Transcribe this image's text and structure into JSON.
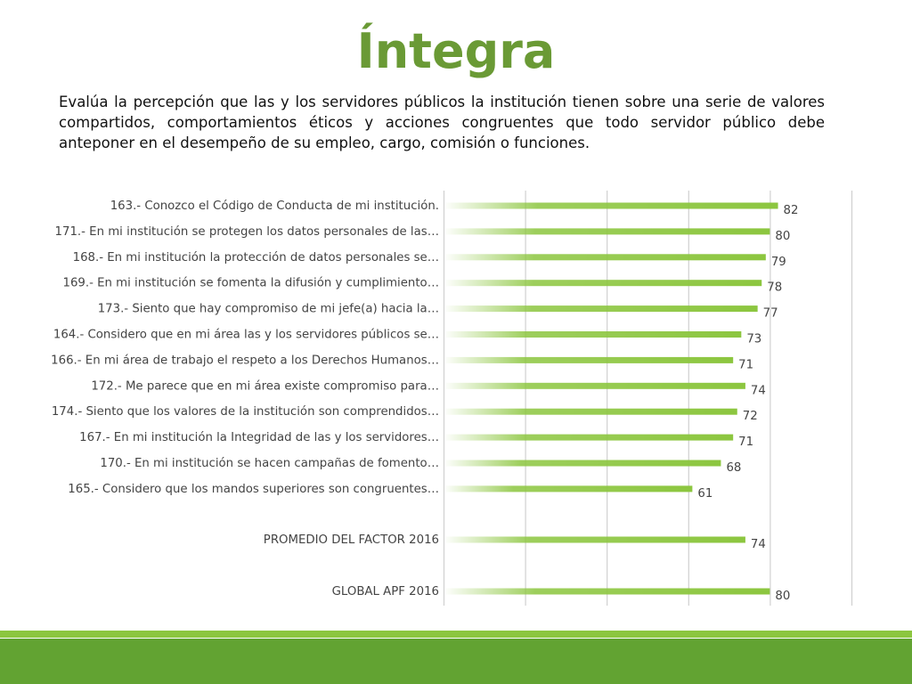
{
  "title": "Íntegra",
  "description": "Evalúa la percepción que las y los servidores públicos la institución tienen sobre una serie de valores compartidos, comportamientos éticos y acciones congruentes que todo servidor público debe anteponer en el desempeño de su empleo, cargo, comisión o funciones.",
  "colors": {
    "title": "#6a9a35",
    "bar": "#8cc63f",
    "footer_light": "#8cc63f",
    "footer_dark": "#62a332"
  },
  "chart_data": {
    "type": "bar",
    "orientation": "horizontal",
    "categories": [
      "163.- Conozco el Código de Conducta de mi institución.",
      "171.- En mi institución se protegen los datos personales de las…",
      "168.- En mi institución la protección de datos personales se…",
      "169.- En mi institución se fomenta la difusión y cumplimiento…",
      "173.- Siento que hay compromiso de mi jefe(a) hacia la…",
      "164.- Considero que en mi área las y los servidores públicos se…",
      "166.- En mi área de trabajo el respeto a los Derechos Humanos…",
      "172.- Me parece que en mi área existe compromiso para…",
      "174.- Siento que los valores de la institución son comprendidos…",
      "167.- En mi institución la Integridad de las y los servidores…",
      "170.- En mi institución se hacen campañas de fomento…",
      "165.- Considero que los mandos superiores son congruentes…",
      "PROMEDIO DEL FACTOR   2016",
      "GLOBAL APF   2016"
    ],
    "values": [
      82,
      80,
      79,
      78,
      77,
      73,
      71,
      74,
      72,
      71,
      68,
      61,
      74,
      80
    ],
    "xlim": [
      0,
      100
    ],
    "grid": true,
    "legend": "none"
  }
}
